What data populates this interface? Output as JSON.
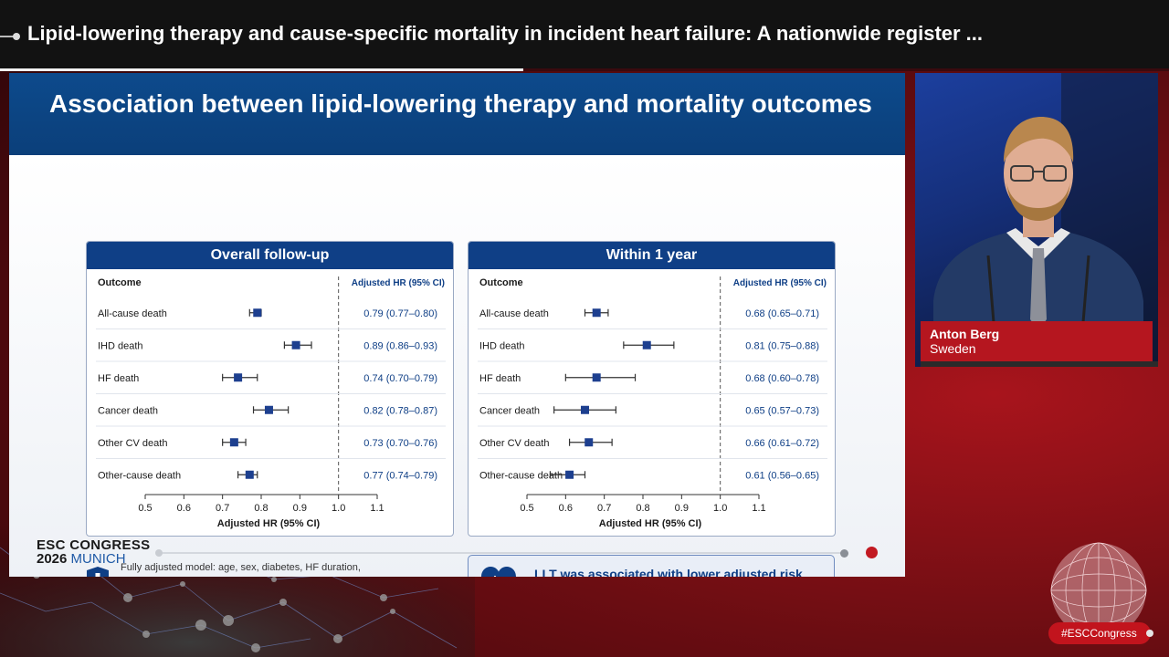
{
  "session": {
    "title": "Lipid-lowering therapy and cause-specific mortality in incident heart failure: A nationwide register ...",
    "progress": 0.448
  },
  "slide": {
    "title": "Association between lipid-lowering therapy and mortality outcomes",
    "note": "Fully adjusted model: age, sex, diabetes, HF duration, hypertension, prior IHD, and LVEF. HR <1 favors LLT.",
    "callout": "LLT was associated with lower adjusted risk across all mortality outcomes.",
    "logo": {
      "line1": "ESC CONGRESS",
      "year": "2026",
      "city": "MUNICH"
    }
  },
  "chart_data": [
    {
      "type": "forest",
      "title": "Overall follow-up",
      "outcome_header": "Outcome",
      "hr_header": "Adjusted HR (95% CI)",
      "xlabel": "Adjusted HR (95% CI)",
      "xlim": [
        0.5,
        1.1
      ],
      "xticks": [
        "0.5",
        "0.6",
        "0.7",
        "0.8",
        "0.9",
        "1.0",
        "1.1"
      ],
      "reference": 1.0,
      "rows": [
        {
          "label": "All-cause death",
          "hr": 0.79,
          "lo": 0.77,
          "hi": 0.8,
          "text": "0.79 (0.77–0.80)"
        },
        {
          "label": "IHD death",
          "hr": 0.89,
          "lo": 0.86,
          "hi": 0.93,
          "text": "0.89 (0.86–0.93)"
        },
        {
          "label": "HF death",
          "hr": 0.74,
          "lo": 0.7,
          "hi": 0.79,
          "text": "0.74 (0.70–0.79)"
        },
        {
          "label": "Cancer death",
          "hr": 0.82,
          "lo": 0.78,
          "hi": 0.87,
          "text": "0.82 (0.78–0.87)"
        },
        {
          "label": "Other CV death",
          "hr": 0.73,
          "lo": 0.7,
          "hi": 0.76,
          "text": "0.73 (0.70–0.76)"
        },
        {
          "label": "Other-cause death",
          "hr": 0.77,
          "lo": 0.74,
          "hi": 0.79,
          "text": "0.77 (0.74–0.79)"
        }
      ]
    },
    {
      "type": "forest",
      "title": "Within 1 year",
      "outcome_header": "Outcome",
      "hr_header": "Adjusted HR (95% CI)",
      "xlabel": "Adjusted HR (95% CI)",
      "xlim": [
        0.5,
        1.1
      ],
      "xticks": [
        "0.5",
        "0.6",
        "0.7",
        "0.8",
        "0.9",
        "1.0",
        "1.1"
      ],
      "reference": 1.0,
      "rows": [
        {
          "label": "All-cause death",
          "hr": 0.68,
          "lo": 0.65,
          "hi": 0.71,
          "text": "0.68 (0.65–0.71)"
        },
        {
          "label": "IHD death",
          "hr": 0.81,
          "lo": 0.75,
          "hi": 0.88,
          "text": "0.81 (0.75–0.88)"
        },
        {
          "label": "HF death",
          "hr": 0.68,
          "lo": 0.6,
          "hi": 0.78,
          "text": "0.68 (0.60–0.78)"
        },
        {
          "label": "Cancer death",
          "hr": 0.65,
          "lo": 0.57,
          "hi": 0.73,
          "text": "0.65 (0.57–0.73)"
        },
        {
          "label": "Other CV death",
          "hr": 0.66,
          "lo": 0.61,
          "hi": 0.72,
          "text": "0.66 (0.61–0.72)"
        },
        {
          "label": "Other-cause death",
          "hr": 0.61,
          "lo": 0.56,
          "hi": 0.65,
          "text": "0.61 (0.56–0.65)"
        }
      ]
    }
  ],
  "speaker": {
    "name": "Anton Berg",
    "country": "Sweden"
  },
  "hashtag": "#ESCCongress",
  "colors": {
    "navy": "#0f3f86",
    "marker": "#1d3f8f",
    "accent": "#c21a22"
  },
  "icons": {
    "note": "shield-plus-icon",
    "callout": "heart-pulse-icon"
  }
}
